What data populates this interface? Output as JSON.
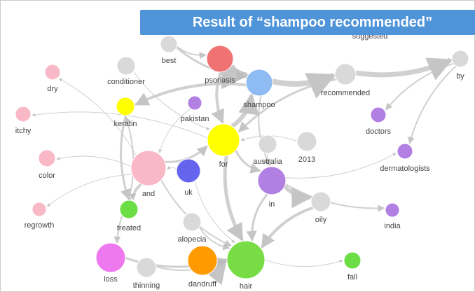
{
  "banner": "Result of “shampoo recommended”",
  "hidden_label": "suggested",
  "nodes": [
    {
      "label": "best",
      "color": "#d9d9d9"
    },
    {
      "label": "psoriasis",
      "color": "#f07272"
    },
    {
      "label": "shampoo",
      "color": "#8ebbf2"
    },
    {
      "label": "recommended",
      "color": "#d9d9d9"
    },
    {
      "label": "by",
      "color": "#d9d9d9"
    },
    {
      "label": "conditioner",
      "color": "#d9d9d9"
    },
    {
      "label": "dry",
      "color": "#f9b8c6"
    },
    {
      "label": "itchy",
      "color": "#f9b8c6"
    },
    {
      "label": "keratin",
      "color": "#ffff00"
    },
    {
      "label": "pakistan",
      "color": "#b27fe2"
    },
    {
      "label": "for",
      "color": "#ffff00"
    },
    {
      "label": "australia",
      "color": "#d9d9d9"
    },
    {
      "label": "2013",
      "color": "#d9d9d9"
    },
    {
      "label": "doctors",
      "color": "#b27fe2"
    },
    {
      "label": "dermatologists",
      "color": "#b27fe2"
    },
    {
      "label": "color",
      "color": "#f9b8c6"
    },
    {
      "label": "and",
      "color": "#f9b8c6"
    },
    {
      "label": "uk",
      "color": "#6464ee"
    },
    {
      "label": "in",
      "color": "#b27fe2"
    },
    {
      "label": "oily",
      "color": "#d9d9d9"
    },
    {
      "label": "india",
      "color": "#b27fe2"
    },
    {
      "label": "regrowth",
      "color": "#f9b8c6"
    },
    {
      "label": "treated",
      "color": "#6ddd45"
    },
    {
      "label": "alopecia",
      "color": "#d9d9d9"
    },
    {
      "label": "loss",
      "color": "#ee78ee"
    },
    {
      "label": "thinning",
      "color": "#d9d9d9"
    },
    {
      "label": "dandruff",
      "color": "#ff9a00"
    },
    {
      "label": "hair",
      "color": "#78dd45"
    },
    {
      "label": "fall",
      "color": "#6ddd45"
    }
  ]
}
